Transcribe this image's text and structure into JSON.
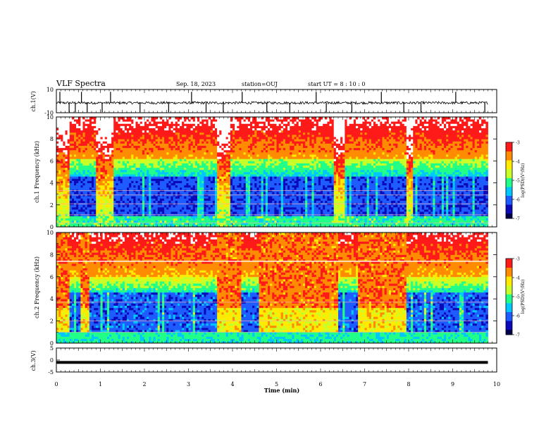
{
  "header": {
    "title": "VLF Spectra",
    "date": "Sep. 18, 2023",
    "station": "station=OUJ",
    "start": "start  UT =   8 : 10 : 0"
  },
  "colors": {
    "background": "#ffffff",
    "axis": "#000000",
    "trace": "#000000",
    "colormap": [
      "#00004a",
      "#0a0ab8",
      "#1e5cff",
      "#00c8ff",
      "#22ff88",
      "#c8ff28",
      "#ffea00",
      "#ff8c00",
      "#ff1a1a",
      "#ffffff"
    ]
  },
  "chart_data": [
    {
      "type": "line",
      "panel": "ch1-waveform",
      "ylabel": "ch.1(V)",
      "ylim": [
        -10,
        10
      ],
      "yticks": [
        "10",
        "-10"
      ],
      "x_unit": "min",
      "baseline": -1.5,
      "spikes_x": [
        0.08,
        0.29,
        0.43,
        0.57,
        0.7,
        1.04,
        1.23,
        1.9,
        2.55,
        3.07,
        3.4,
        3.79,
        4.22,
        4.78,
        5.3,
        5.9,
        6.13,
        6.71,
        7.38,
        7.89,
        8.28,
        9.07,
        9.73
      ]
    },
    {
      "type": "heatmap",
      "panel": "ch1-spectrogram",
      "ylabel": "ch.1 Frequency (kHz)",
      "ylim": [
        0,
        10
      ],
      "yticks": [
        "0",
        "2",
        "4",
        "6",
        "8",
        "10"
      ],
      "colorbar": {
        "label": "log(PSD)(V²/Hz)",
        "ticks": [
          "-3",
          "-4",
          "-5",
          "-6",
          "-7"
        ],
        "range": [
          -7,
          -3
        ]
      },
      "quiet_intervals_min": [
        [
          0.3,
          0.9
        ],
        [
          1.3,
          3.65
        ],
        [
          3.95,
          4.7
        ],
        [
          4.85,
          6.3
        ],
        [
          6.55,
          7.95
        ],
        [
          8.1,
          9.8
        ]
      ],
      "noisy_intervals_min": [
        [
          0,
          0.3
        ],
        [
          0.9,
          1.3
        ],
        [
          3.65,
          3.95
        ],
        [
          6.3,
          6.55
        ],
        [
          7.95,
          8.1
        ]
      ],
      "bands_khz": [
        0.35,
        1.1,
        2.1,
        2.9,
        3.3
      ]
    },
    {
      "type": "heatmap",
      "panel": "ch2-spectrogram",
      "ylabel": "ch.2 Frequency (kHz)",
      "ylim": [
        0,
        10
      ],
      "yticks": [
        "0",
        "2",
        "4",
        "6",
        "8",
        "10"
      ],
      "colorbar": {
        "label": "log(PSD)(V²/Hz)",
        "ticks": [
          "-3",
          "-4",
          "-5",
          "-6",
          "-7"
        ],
        "range": [
          -7,
          -3
        ]
      },
      "active_intervals_min": [
        [
          0,
          0.3
        ],
        [
          0.55,
          0.75
        ],
        [
          3.65,
          4.2
        ],
        [
          4.6,
          6.4
        ],
        [
          6.85,
          7.95
        ]
      ],
      "quiet_intervals_min": [
        [
          0.3,
          0.55
        ],
        [
          0.75,
          1.3
        ],
        [
          1.3,
          3.65
        ],
        [
          4.2,
          4.6
        ],
        [
          6.4,
          6.85
        ],
        [
          7.95,
          9.8
        ]
      ],
      "bands_khz": [
        1.0,
        2.0,
        3.7,
        7.4
      ]
    },
    {
      "type": "line",
      "panel": "ch3-waveform",
      "ylabel": "ch.3(V)",
      "ylim": [
        -5,
        5
      ],
      "yticks": [
        "5",
        "0",
        "-5"
      ],
      "xlabel": "Time  (min)",
      "xlim": [
        0,
        10
      ],
      "xticks": [
        "0",
        "1",
        "2",
        "3",
        "4",
        "5",
        "6",
        "7",
        "8",
        "9",
        "10"
      ],
      "value": -1.0,
      "data_end_min": 9.8
    }
  ]
}
